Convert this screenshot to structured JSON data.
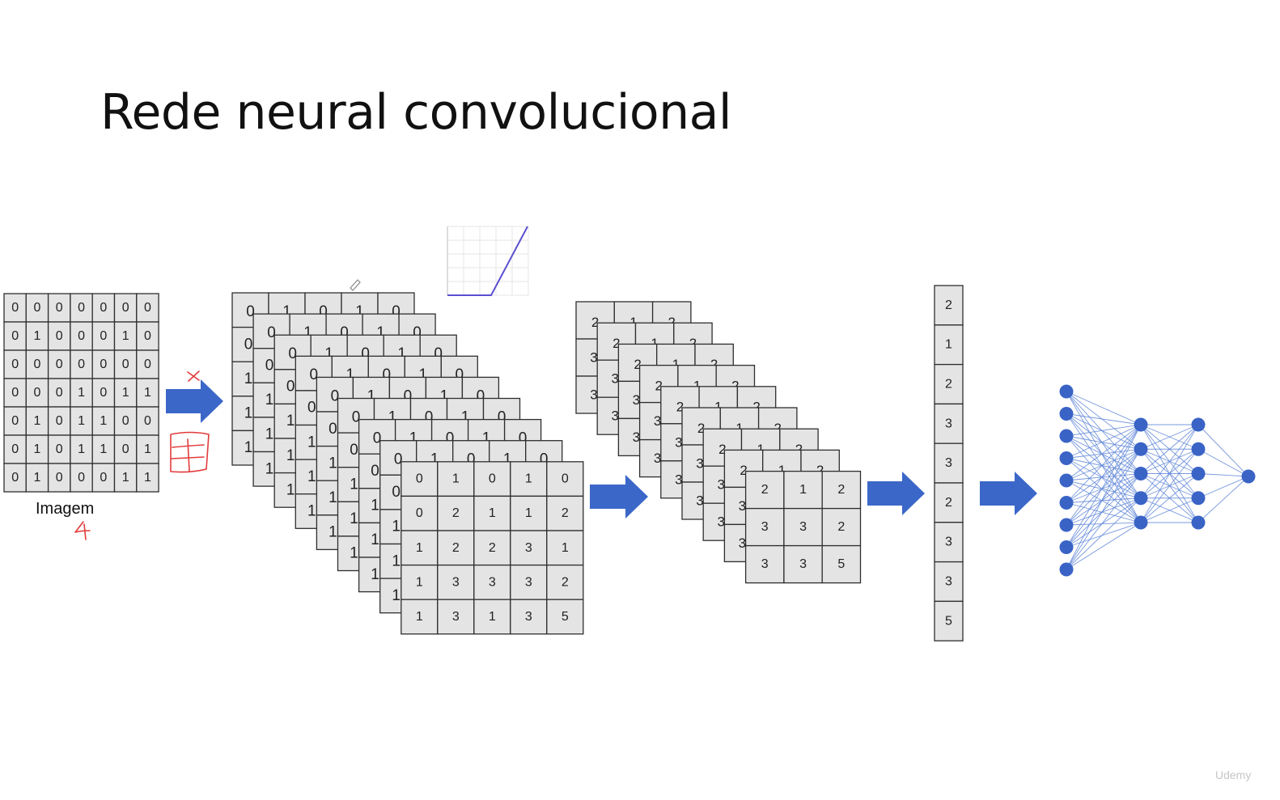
{
  "title": "Rede neural convolucional",
  "input_image": {
    "caption": "Imagem",
    "matrix": [
      [
        "0",
        "0",
        "0",
        "0",
        "0",
        "0",
        "0"
      ],
      [
        "0",
        "1",
        "0",
        "0",
        "0",
        "1",
        "0"
      ],
      [
        "0",
        "0",
        "0",
        "0",
        "0",
        "0",
        "0"
      ],
      [
        "0",
        "0",
        "0",
        "1",
        "0",
        "1",
        "1"
      ],
      [
        "0",
        "1",
        "0",
        "1",
        "1",
        "0",
        "0"
      ],
      [
        "0",
        "1",
        "0",
        "1",
        "1",
        "0",
        "1"
      ],
      [
        "0",
        "1",
        "0",
        "0",
        "0",
        "1",
        "1"
      ]
    ]
  },
  "feature_maps": {
    "layer_count": 9,
    "back_top_row": [
      "0",
      "1",
      "0",
      "1",
      "0"
    ],
    "back_left_column": [
      "0",
      "0",
      "1",
      "1",
      "1"
    ],
    "front_matrix": [
      [
        "0",
        "1",
        "0",
        "1",
        "0"
      ],
      [
        "0",
        "2",
        "1",
        "1",
        "2"
      ],
      [
        "1",
        "2",
        "2",
        "3",
        "1"
      ],
      [
        "1",
        "3",
        "3",
        "3",
        "2"
      ],
      [
        "1",
        "3",
        "1",
        "3",
        "5"
      ]
    ]
  },
  "pooled_maps": {
    "layer_count": 9,
    "back_top_row": [
      "2",
      "1",
      "2"
    ],
    "back_left_column": [
      "2",
      "3",
      "3"
    ],
    "front_matrix": [
      [
        "2",
        "1",
        "2"
      ],
      [
        "3",
        "3",
        "2"
      ],
      [
        "3",
        "3",
        "5"
      ]
    ]
  },
  "flattened_vector": [
    "2",
    "1",
    "2",
    "3",
    "3",
    "2",
    "3",
    "3",
    "5"
  ],
  "activation_plot": {
    "type": "line",
    "description_shape": "relu",
    "line_color": "#5a4fd0"
  },
  "neural_network": {
    "layers": [
      9,
      5,
      5,
      1
    ],
    "node_color": "#3a63c6",
    "edge_color": "#5f86d8"
  },
  "arrow_color": "#3b67c8",
  "annotation_color": "#e23b3b",
  "watermark": "Udemy"
}
